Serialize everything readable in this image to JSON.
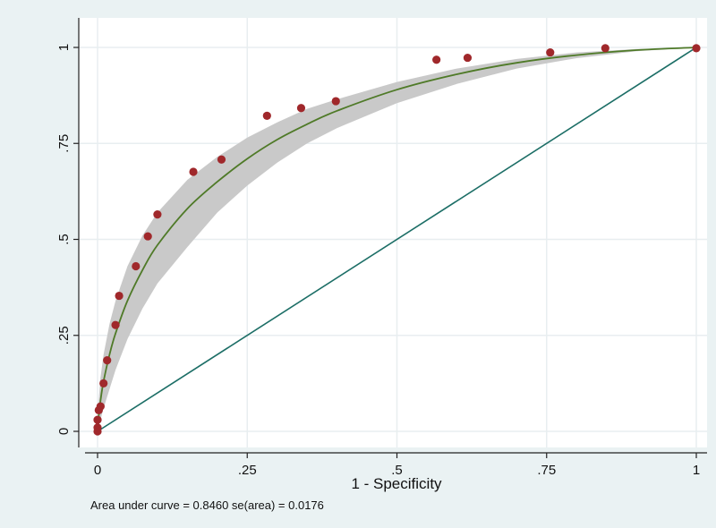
{
  "chart_data": {
    "type": "scatter",
    "title": "",
    "xlabel": "1 - Specificity",
    "ylabel": "",
    "xlim": [
      0,
      1
    ],
    "ylim": [
      0,
      1
    ],
    "grid": true,
    "x_ticks": [
      {
        "value": 0,
        "label": "0"
      },
      {
        "value": 0.25,
        "label": ".25"
      },
      {
        "value": 0.5,
        "label": ".5"
      },
      {
        "value": 0.75,
        "label": ".75"
      },
      {
        "value": 1,
        "label": "1"
      }
    ],
    "y_ticks": [
      {
        "value": 0,
        "label": "0"
      },
      {
        "value": 0.25,
        "label": ".25"
      },
      {
        "value": 0.5,
        "label": ".5"
      },
      {
        "value": 0.75,
        "label": ".75"
      },
      {
        "value": 1,
        "label": "1"
      }
    ],
    "note": "Area under curve = 0.8460  se(area) = 0.0176",
    "auc": 0.846,
    "se_area": 0.0176,
    "points": [
      {
        "x": 0.0,
        "y": 0.0
      },
      {
        "x": 0.0,
        "y": 0.01
      },
      {
        "x": 0.0,
        "y": 0.03
      },
      {
        "x": 0.002,
        "y": 0.055
      },
      {
        "x": 0.005,
        "y": 0.065
      },
      {
        "x": 0.01,
        "y": 0.125
      },
      {
        "x": 0.016,
        "y": 0.185
      },
      {
        "x": 0.03,
        "y": 0.277
      },
      {
        "x": 0.036,
        "y": 0.353
      },
      {
        "x": 0.064,
        "y": 0.43
      },
      {
        "x": 0.084,
        "y": 0.508
      },
      {
        "x": 0.1,
        "y": 0.565
      },
      {
        "x": 0.16,
        "y": 0.676
      },
      {
        "x": 0.207,
        "y": 0.708
      },
      {
        "x": 0.283,
        "y": 0.822
      },
      {
        "x": 0.34,
        "y": 0.842
      },
      {
        "x": 0.398,
        "y": 0.86
      },
      {
        "x": 0.566,
        "y": 0.968
      },
      {
        "x": 0.618,
        "y": 0.973
      },
      {
        "x": 0.756,
        "y": 0.987
      },
      {
        "x": 0.848,
        "y": 0.998
      },
      {
        "x": 1.0,
        "y": 0.998
      }
    ],
    "fitted_curve": [
      [
        0,
        0
      ],
      [
        0.002,
        0.04
      ],
      [
        0.005,
        0.08
      ],
      [
        0.01,
        0.13
      ],
      [
        0.02,
        0.2
      ],
      [
        0.03,
        0.255
      ],
      [
        0.05,
        0.34
      ],
      [
        0.075,
        0.42
      ],
      [
        0.1,
        0.485
      ],
      [
        0.15,
        0.58
      ],
      [
        0.2,
        0.65
      ],
      [
        0.25,
        0.71
      ],
      [
        0.3,
        0.76
      ],
      [
        0.35,
        0.8
      ],
      [
        0.4,
        0.835
      ],
      [
        0.5,
        0.89
      ],
      [
        0.6,
        0.93
      ],
      [
        0.7,
        0.96
      ],
      [
        0.8,
        0.98
      ],
      [
        0.9,
        0.993
      ],
      [
        1,
        1
      ]
    ],
    "confidence_band": {
      "upper": [
        [
          0,
          0
        ],
        [
          0.002,
          0.08
        ],
        [
          0.005,
          0.14
        ],
        [
          0.01,
          0.2
        ],
        [
          0.02,
          0.28
        ],
        [
          0.03,
          0.34
        ],
        [
          0.05,
          0.43
        ],
        [
          0.075,
          0.51
        ],
        [
          0.1,
          0.57
        ],
        [
          0.15,
          0.655
        ],
        [
          0.2,
          0.715
        ],
        [
          0.25,
          0.765
        ],
        [
          0.3,
          0.805
        ],
        [
          0.35,
          0.84
        ],
        [
          0.4,
          0.865
        ],
        [
          0.5,
          0.91
        ],
        [
          0.6,
          0.945
        ],
        [
          0.7,
          0.97
        ],
        [
          0.8,
          0.987
        ],
        [
          0.9,
          0.996
        ],
        [
          1,
          1
        ]
      ],
      "lower": [
        [
          0,
          0
        ],
        [
          0.002,
          0.015
        ],
        [
          0.005,
          0.03
        ],
        [
          0.01,
          0.06
        ],
        [
          0.02,
          0.11
        ],
        [
          0.03,
          0.16
        ],
        [
          0.05,
          0.24
        ],
        [
          0.075,
          0.32
        ],
        [
          0.1,
          0.385
        ],
        [
          0.15,
          0.48
        ],
        [
          0.2,
          0.57
        ],
        [
          0.25,
          0.64
        ],
        [
          0.3,
          0.7
        ],
        [
          0.35,
          0.75
        ],
        [
          0.4,
          0.79
        ],
        [
          0.5,
          0.855
        ],
        [
          0.6,
          0.905
        ],
        [
          0.7,
          0.945
        ],
        [
          0.8,
          0.972
        ],
        [
          0.9,
          0.99
        ],
        [
          1,
          1
        ]
      ]
    },
    "reference_line": [
      [
        0,
        0
      ],
      [
        1,
        1
      ]
    ],
    "colors": {
      "outer_background": "#eaf2f3",
      "plot_background": "#ffffff",
      "grid": "#e8eef0",
      "band": "#c9c9c9",
      "curve": "#4f7a28",
      "reference": "#1c6e66",
      "point": "#a0282b"
    }
  }
}
